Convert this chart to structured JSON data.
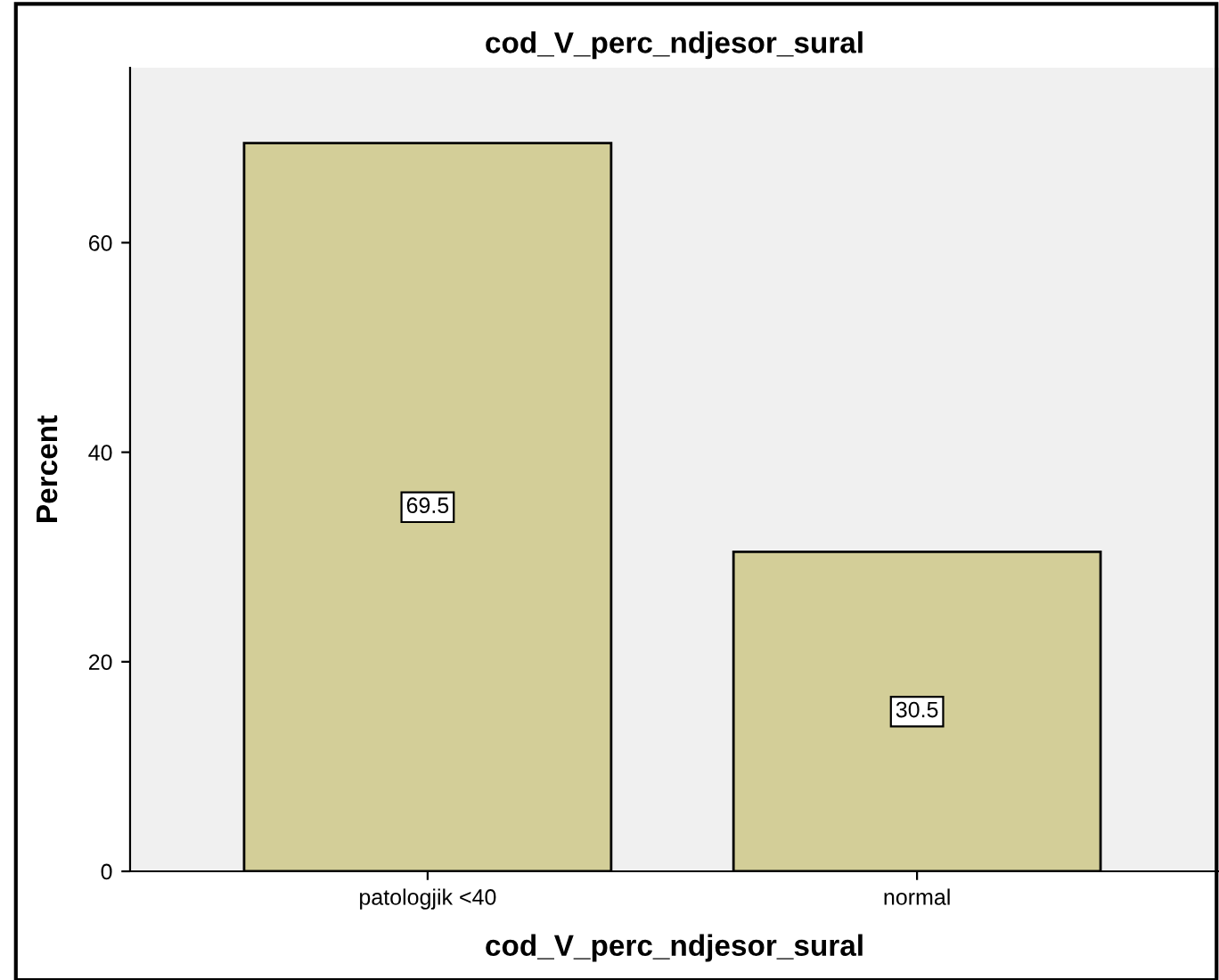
{
  "chart_data": {
    "type": "bar",
    "title": "cod_V_perc_ndjesor_sural",
    "xlabel": "cod_V_perc_ndjesor_sural",
    "ylabel": "Percent",
    "categories": [
      "patologjik <40",
      "normal"
    ],
    "values": [
      69.5,
      30.5
    ],
    "color": "#d3ce98",
    "data_labels": true,
    "ylim": [
      0,
      76.7
    ],
    "yticks": [
      0,
      20,
      40,
      60
    ],
    "grid": false,
    "legend": false
  }
}
